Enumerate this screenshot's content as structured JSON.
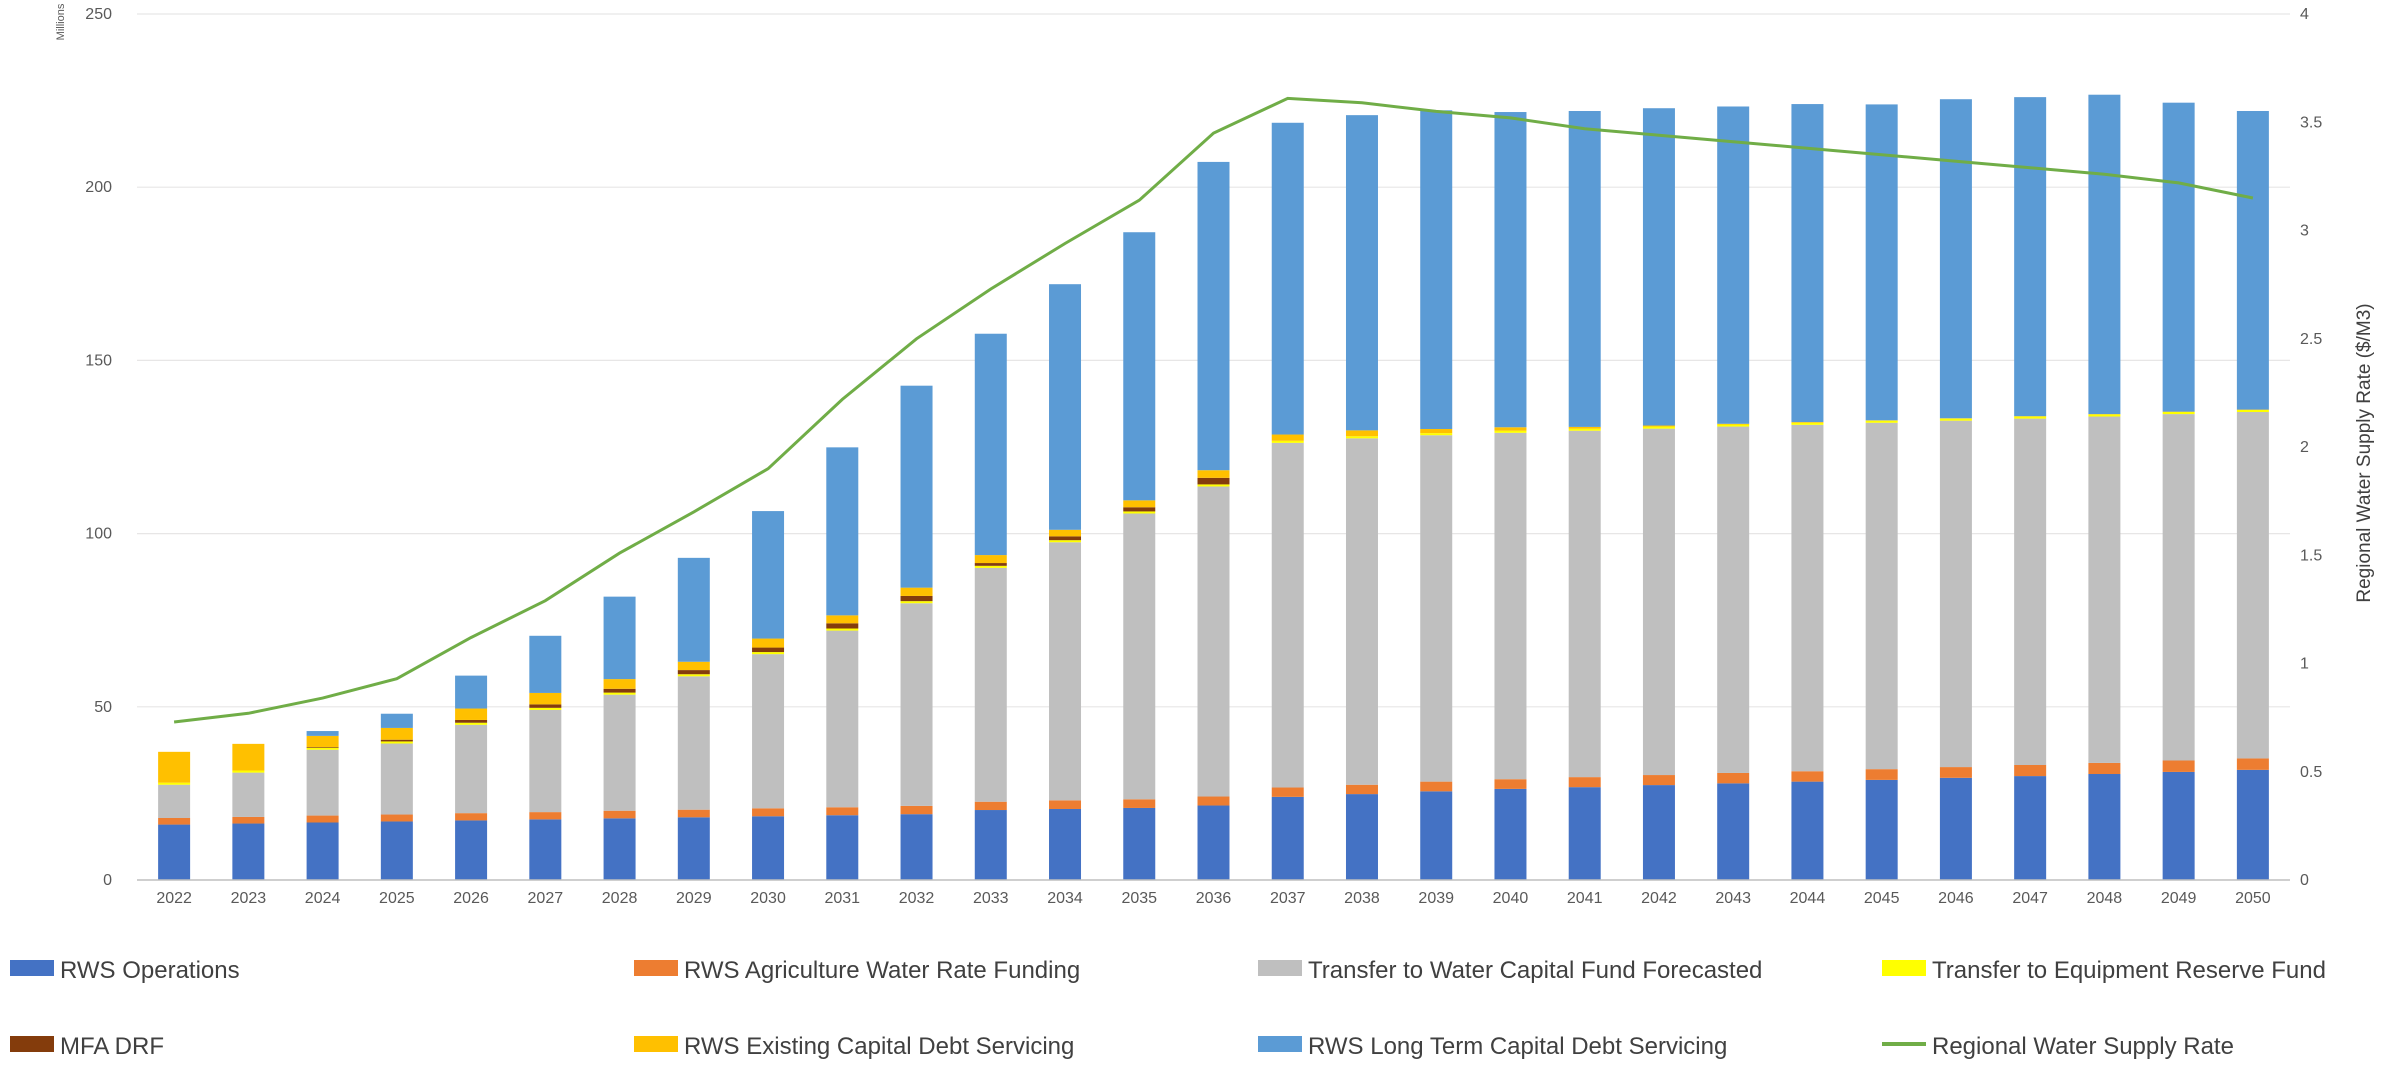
{
  "chart_data": {
    "type": "bar",
    "stacked": true,
    "units_label": "Millions",
    "y2label": "Regional Water Supply Rate ($/M3)",
    "ylim": [
      0,
      250
    ],
    "y_ticks": [
      0,
      50,
      100,
      150,
      200,
      250
    ],
    "y2lim": [
      0,
      4
    ],
    "y2_ticks": [
      "0",
      "0.5",
      "1",
      "1.5",
      "2",
      "2.5",
      "3",
      "3.5",
      "4"
    ],
    "grid": "horizontal",
    "legend_position": "bottom",
    "categories": [
      "2022",
      "2023",
      "2024",
      "2025",
      "2026",
      "2027",
      "2028",
      "2029",
      "2030",
      "2031",
      "2032",
      "2033",
      "2034",
      "2035",
      "2036",
      "2037",
      "2038",
      "2039",
      "2040",
      "2041",
      "2042",
      "2043",
      "2044",
      "2045",
      "2046",
      "2047",
      "2048",
      "2049",
      "2050"
    ],
    "series": [
      {
        "name": "RWS Operations",
        "color": "#4472C4",
        "values": [
          16,
          16.3,
          16.6,
          16.9,
          17.2,
          17.5,
          17.8,
          18.1,
          18.4,
          18.7,
          19,
          20.2,
          20.5,
          20.8,
          21.5,
          24,
          24.8,
          25.6,
          26.3,
          26.8,
          27.4,
          27.9,
          28.4,
          28.9,
          29.5,
          30,
          30.6,
          31.2,
          31.8
        ]
      },
      {
        "name": "RWS Agriculture Water Rate Funding",
        "color": "#ED7D31",
        "values": [
          1.9,
          1.9,
          2,
          2,
          2.1,
          2.1,
          2.2,
          2.2,
          2.3,
          2.3,
          2.4,
          2.4,
          2.5,
          2.5,
          2.6,
          2.7,
          2.7,
          2.8,
          2.8,
          2.9,
          2.9,
          3,
          3,
          3.1,
          3.1,
          3.2,
          3.2,
          3.3,
          3.3
        ]
      },
      {
        "name": "Transfer to Water Capital Fund Forecasted",
        "color": "#BFBFBF",
        "values": [
          9.6,
          12.8,
          19,
          20.5,
          25.5,
          29.5,
          33.5,
          38.5,
          44.5,
          51,
          58.5,
          67.5,
          74.5,
          82.5,
          89.5,
          99.5,
          100,
          100,
          100,
          100,
          100,
          100,
          100,
          100,
          100,
          100,
          100,
          100,
          100
        ]
      },
      {
        "name": "Transfer to Equipment Reserve Fund",
        "color": "#FFFF00",
        "values": [
          0.6,
          0.6,
          0.6,
          0.6,
          0.6,
          0.6,
          0.6,
          0.6,
          0.6,
          0.6,
          0.6,
          0.6,
          0.6,
          0.6,
          0.6,
          0.6,
          0.6,
          0.6,
          0.6,
          0.6,
          0.6,
          0.6,
          0.6,
          0.6,
          0.6,
          0.6,
          0.6,
          0.6,
          0.6
        ]
      },
      {
        "name": "MFA DRF",
        "color": "#843C0C",
        "values": [
          0,
          0,
          0.2,
          0.5,
          0.8,
          1,
          1.1,
          1.2,
          1.3,
          1.5,
          1.5,
          0.8,
          1.1,
          1.2,
          1.9,
          0,
          0,
          0,
          0,
          0,
          0,
          0,
          0,
          0,
          0,
          0,
          0,
          0,
          0
        ]
      },
      {
        "name": "RWS Existing Capital Debt Servicing",
        "color": "#FFC000",
        "values": [
          8.9,
          7.7,
          3.2,
          3.4,
          3.3,
          3.3,
          2.8,
          2.4,
          2.6,
          2.3,
          2.4,
          2.3,
          1.9,
          2,
          2.2,
          1.8,
          1.7,
          1.2,
          1,
          0.5,
          0.3,
          0.2,
          0.2,
          0.1,
          0.1,
          0.1,
          0.1,
          0.1,
          0.1
        ]
      },
      {
        "name": "RWS Long Term Capital Debt Servicing",
        "color": "#5B9BD5",
        "values": [
          0,
          0,
          1.4,
          4.1,
          9.5,
          16.5,
          23.8,
          30,
          36.8,
          48.5,
          58.3,
          63.9,
          70.9,
          77.4,
          89,
          90,
          91,
          92,
          91,
          91.2,
          91.6,
          91.6,
          91.8,
          91.2,
          92.1,
          92.1,
          92.2,
          89.2,
          86.2
        ]
      }
    ],
    "line_series": {
      "name": "Regional Water Supply Rate",
      "color": "#70AD47",
      "axis": "secondary",
      "values": [
        0.73,
        0.77,
        0.84,
        0.93,
        1.12,
        1.29,
        1.51,
        1.7,
        1.9,
        2.22,
        2.5,
        2.73,
        2.94,
        3.14,
        3.45,
        3.61,
        3.59,
        3.55,
        3.52,
        3.47,
        3.44,
        3.41,
        3.38,
        3.35,
        3.32,
        3.29,
        3.26,
        3.22,
        3.15
      ]
    }
  }
}
